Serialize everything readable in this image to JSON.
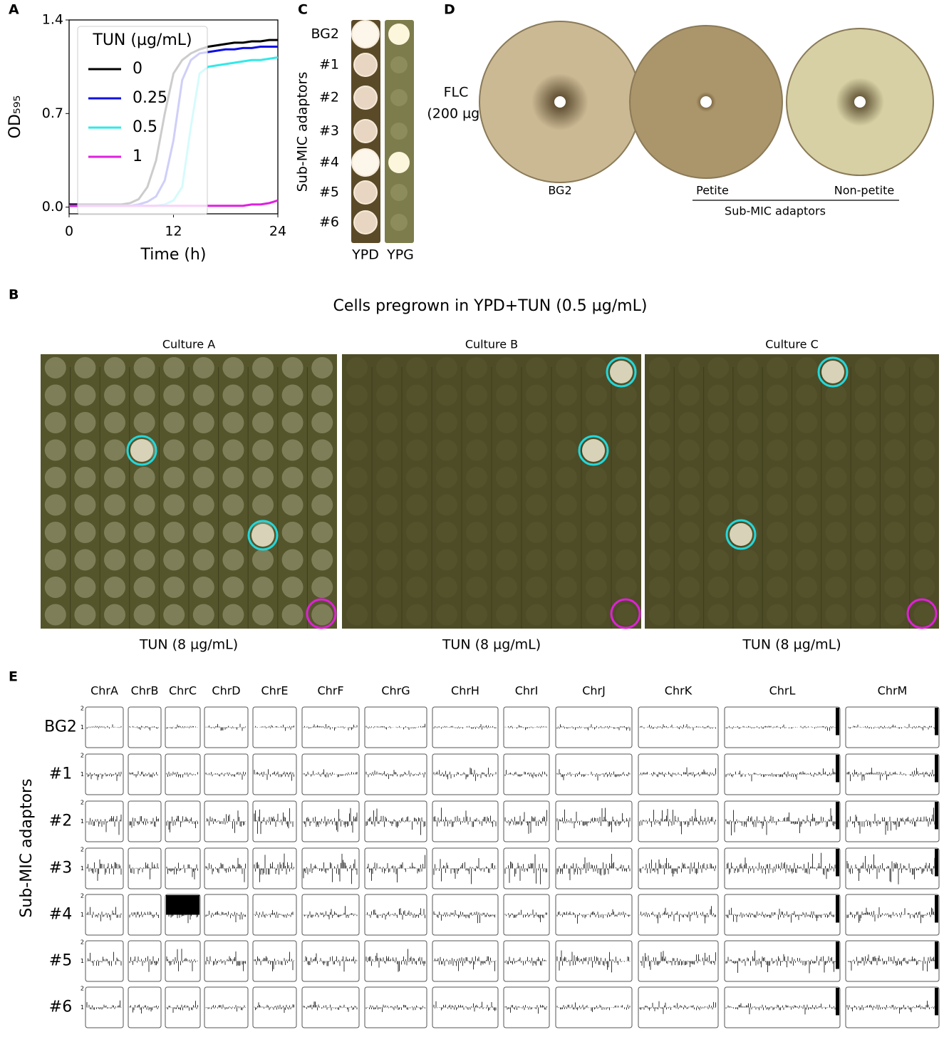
{
  "chart_data": {
    "type": "line",
    "xlabel": "Time (h)",
    "ylabel": "OD₅₉₅",
    "x": [
      0,
      1,
      2,
      3,
      4,
      5,
      6,
      7,
      8,
      9,
      10,
      11,
      12,
      13,
      14,
      15,
      16,
      17,
      18,
      19,
      20,
      21,
      22,
      23,
      24
    ],
    "xlim": [
      0,
      24
    ],
    "xticks": [
      0,
      12,
      24
    ],
    "ylim": [
      -0.05,
      1.4
    ],
    "yticks": [
      {
        "value": 0,
        "label": "0.0"
      },
      0.7,
      1.4
    ],
    "legend_title": "TUN (µg/mL)",
    "legend": "upper left",
    "series": [
      {
        "name": "0",
        "color": "#000000",
        "values": [
          0.02,
          0.02,
          0.02,
          0.02,
          0.02,
          0.02,
          0.02,
          0.03,
          0.06,
          0.15,
          0.35,
          0.7,
          1.0,
          1.1,
          1.15,
          1.18,
          1.2,
          1.21,
          1.22,
          1.23,
          1.23,
          1.24,
          1.24,
          1.25,
          1.25
        ]
      },
      {
        "name": "0.25",
        "color": "#1010e0",
        "values": [
          0.01,
          0.01,
          0.01,
          0.01,
          0.01,
          0.01,
          0.01,
          0.01,
          0.02,
          0.04,
          0.08,
          0.2,
          0.5,
          0.95,
          1.1,
          1.15,
          1.16,
          1.17,
          1.18,
          1.18,
          1.19,
          1.19,
          1.2,
          1.2,
          1.2
        ]
      },
      {
        "name": "0.5",
        "color": "#33e8e8",
        "values": [
          0.01,
          0.01,
          0.01,
          0.01,
          0.01,
          0.01,
          0.01,
          0.01,
          0.01,
          0.01,
          0.01,
          0.02,
          0.05,
          0.15,
          0.6,
          1.0,
          1.05,
          1.06,
          1.07,
          1.08,
          1.09,
          1.1,
          1.1,
          1.11,
          1.12
        ]
      },
      {
        "name": "1",
        "color": "#e020e0",
        "values": [
          0.01,
          0.01,
          0.01,
          0.01,
          0.01,
          0.01,
          0.01,
          0.01,
          0.01,
          0.01,
          0.01,
          0.01,
          0.01,
          0.01,
          0.01,
          0.01,
          0.01,
          0.01,
          0.01,
          0.01,
          0.01,
          0.02,
          0.02,
          0.03,
          0.05
        ]
      }
    ]
  },
  "figure": {
    "panel_labels": [
      "A",
      "B",
      "C",
      "D",
      "E"
    ],
    "panel_c": {
      "rows": [
        "BG2",
        "#1",
        "#2",
        "#3",
        "#4",
        "#5",
        "#6"
      ],
      "columns": [
        "YPD",
        "YPG"
      ],
      "ylabel": "Sub-MIC adaptors"
    },
    "panel_d": {
      "treatment": [
        "FLC",
        "(200 µg)"
      ],
      "plates": [
        "BG2",
        "Petite",
        "Non-petite"
      ],
      "group": "Sub-MIC adaptors"
    },
    "panel_b": {
      "title": "Cells pregrown in YPD+TUN (0.5 µg/mL)",
      "cultures": [
        "Culture A",
        "Culture B",
        "Culture C"
      ],
      "condition": [
        "TUN (8 µg/mL)",
        "TUN (8 µg/mL)",
        "TUN (8 µg/mL)"
      ]
    },
    "panel_e": {
      "chromosomes": [
        "ChrA",
        "ChrB",
        "ChrC",
        "ChrD",
        "ChrE",
        "ChrF",
        "ChrG",
        "ChrH",
        "ChrI",
        "ChrJ",
        "ChrK",
        "ChrL",
        "ChrM"
      ],
      "rows": [
        "BG2",
        "#1",
        "#2",
        "#3",
        "#4",
        "#5",
        "#6"
      ],
      "ylabel": "Sub-MIC adaptors",
      "yticks": [
        2,
        1
      ]
    }
  }
}
